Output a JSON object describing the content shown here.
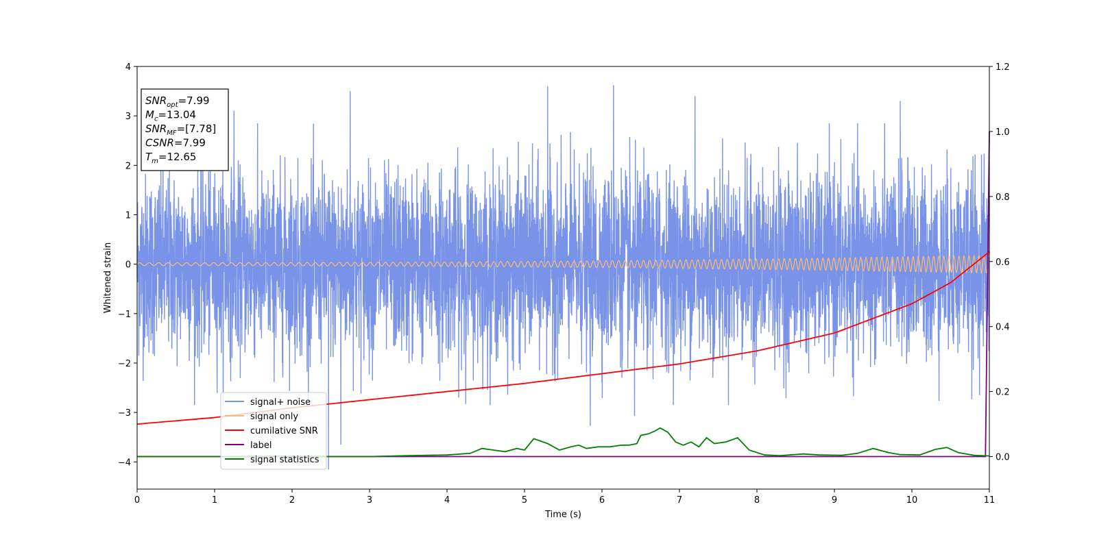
{
  "chart_data": {
    "type": "line",
    "xlabel": "Time (s)",
    "ylabel": "Whitened strain",
    "xlim": [
      0,
      11
    ],
    "ylim": [
      -4.55,
      4
    ],
    "y2lim": [
      -0.1,
      1.2
    ],
    "x_ticks": [
      "0",
      "1",
      "2",
      "3",
      "4",
      "5",
      "6",
      "7",
      "8",
      "9",
      "10",
      "11"
    ],
    "y_ticks": [
      "−4",
      "−3",
      "−2",
      "−1",
      "0",
      "1",
      "2",
      "3",
      "4"
    ],
    "y2_ticks": [
      "0.0",
      "0.2",
      "0.4",
      "0.6",
      "0.8",
      "1.0",
      "1.2"
    ],
    "grid": false,
    "legend_position": "lower-left",
    "info_box": {
      "snr_opt": {
        "sym": "SNR",
        "sub": "opt",
        "rest": "=7.99"
      },
      "mc": {
        "sym": "M",
        "sub": "c",
        "rest": "=13.04"
      },
      "snr_mf": {
        "sym": "SNR",
        "sub": "MF",
        "rest": "=[7.78]"
      },
      "csnr": {
        "sym": "CSNR",
        "sub": "",
        "rest": "=7.99"
      },
      "tm": {
        "sym": "T",
        "sub": "m",
        "rest": "=12.65"
      }
    },
    "series": [
      {
        "name": "signal+ noise",
        "color": "#7893e8",
        "axis": "left",
        "description_stats": {
          "std": 0.9,
          "min": -4.15,
          "max": 3.62
        },
        "peaks": [
          [
            1.25,
            3.1
          ],
          [
            2.75,
            3.5
          ],
          [
            5.3,
            3.6
          ],
          [
            6.15,
            3.62
          ],
          [
            7.2,
            3.4
          ],
          [
            9.85,
            3.3
          ],
          [
            5.85,
            -3.27
          ],
          [
            2.47,
            -4.15
          ],
          [
            2.63,
            -3.65
          ],
          [
            6.42,
            -3.07
          ]
        ]
      },
      {
        "name": "signal only",
        "color": "#f5b87a",
        "axis": "left",
        "amplitude_start": 0.03,
        "amplitude_end": 0.18
      },
      {
        "name": "cumilative SNR",
        "color": "#ff0000",
        "axis": "right",
        "x": [
          0,
          1,
          2,
          3,
          4,
          5,
          6,
          7,
          8,
          9,
          10,
          10.5,
          11
        ],
        "values": [
          0.1,
          0.12,
          0.15,
          0.175,
          0.2,
          0.225,
          0.255,
          0.285,
          0.325,
          0.38,
          0.47,
          0.535,
          0.63
        ]
      },
      {
        "name": "label",
        "color": "#800080",
        "axis": "right",
        "x": [
          0,
          10.95,
          11
        ],
        "values": [
          0,
          0,
          1
        ]
      },
      {
        "name": "signal statistics",
        "color": "#008000",
        "axis": "right",
        "x": [
          0,
          0.5,
          1,
          1.5,
          2,
          2.5,
          3,
          3.5,
          4,
          4.3,
          4.45,
          4.6,
          4.75,
          4.9,
          5.0,
          5.12,
          5.3,
          5.45,
          5.6,
          5.7,
          5.8,
          5.95,
          6.1,
          6.25,
          6.35,
          6.45,
          6.5,
          6.6,
          6.68,
          6.75,
          6.85,
          6.95,
          7.05,
          7.15,
          7.25,
          7.35,
          7.45,
          7.6,
          7.75,
          7.9,
          8.1,
          8.3,
          8.6,
          8.8,
          9.1,
          9.3,
          9.5,
          9.7,
          9.85,
          10.1,
          10.3,
          10.45,
          10.6,
          10.8,
          11
        ],
        "values": [
          0,
          0,
          0,
          0,
          0,
          0,
          0,
          0.003,
          0.005,
          0.01,
          0.025,
          0.02,
          0.015,
          0.025,
          0.02,
          0.055,
          0.04,
          0.02,
          0.03,
          0.035,
          0.025,
          0.03,
          0.03,
          0.035,
          0.035,
          0.04,
          0.065,
          0.07,
          0.078,
          0.088,
          0.075,
          0.045,
          0.035,
          0.045,
          0.03,
          0.058,
          0.04,
          0.045,
          0.058,
          0.02,
          0.005,
          0.003,
          0.008,
          0.005,
          0.004,
          0.01,
          0.025,
          0.012,
          0.006,
          0.005,
          0.022,
          0.028,
          0.012,
          0.004,
          0.002
        ]
      }
    ]
  }
}
